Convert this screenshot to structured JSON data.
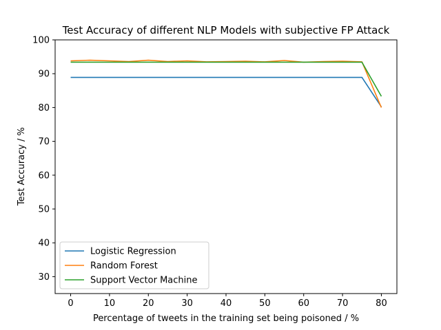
{
  "chart_data": {
    "type": "line",
    "title": "Test Accuracy of different NLP Models with subjective FP Attack",
    "xlabel": "Percentage of tweets in the training set being poisoned / %",
    "ylabel": "Test Accuracy / %",
    "xlim": [
      -4,
      84
    ],
    "ylim": [
      25,
      100
    ],
    "xticks": [
      0,
      10,
      20,
      30,
      40,
      50,
      60,
      70,
      80
    ],
    "yticks": [
      30,
      40,
      50,
      60,
      70,
      80,
      90,
      100
    ],
    "grid": false,
    "legend_position": "lower-left",
    "x": [
      0,
      5,
      10,
      15,
      20,
      25,
      30,
      35,
      40,
      45,
      50,
      55,
      60,
      65,
      70,
      75,
      80
    ],
    "series": [
      {
        "name": "Logistic Regression",
        "color": "#1f77b4",
        "values": [
          88.9,
          88.9,
          88.9,
          88.9,
          88.9,
          88.9,
          88.9,
          88.9,
          88.9,
          88.9,
          88.9,
          88.9,
          88.9,
          88.9,
          88.9,
          88.9,
          80.2
        ]
      },
      {
        "name": "Random Forest",
        "color": "#ff7f0e",
        "values": [
          93.8,
          94.0,
          93.8,
          93.6,
          94.0,
          93.6,
          93.8,
          93.5,
          93.6,
          93.7,
          93.5,
          93.9,
          93.4,
          93.6,
          93.7,
          93.5,
          80.0
        ]
      },
      {
        "name": "Support Vector Machine",
        "color": "#2ca02c",
        "values": [
          93.4,
          93.4,
          93.4,
          93.4,
          93.4,
          93.4,
          93.4,
          93.4,
          93.4,
          93.4,
          93.4,
          93.4,
          93.4,
          93.4,
          93.4,
          93.4,
          83.3
        ]
      }
    ]
  }
}
